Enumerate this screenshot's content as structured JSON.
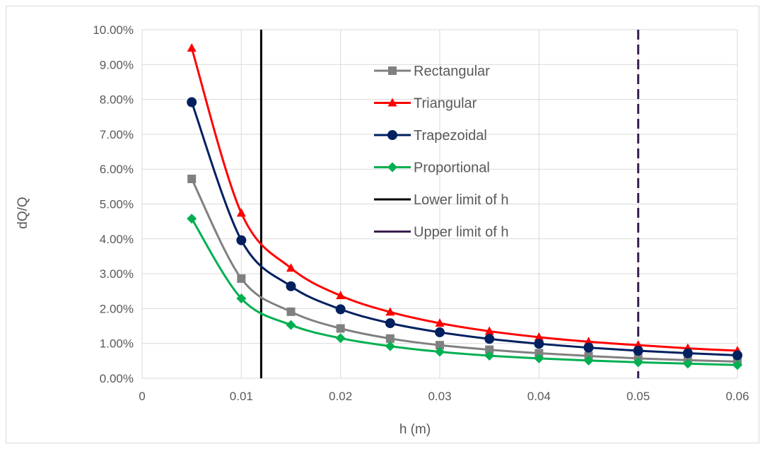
{
  "chart_data": {
    "type": "line",
    "title": "",
    "xlabel": "h (m)",
    "ylabel": "dQ/Q",
    "xlim": [
      0,
      0.06
    ],
    "ylim": [
      0,
      0.1
    ],
    "x_ticks": [
      "0",
      "0.01",
      "0.02",
      "0.03",
      "0.04",
      "0.05",
      "0.06"
    ],
    "y_ticks": [
      "0.00%",
      "1.00%",
      "2.00%",
      "3.00%",
      "4.00%",
      "5.00%",
      "6.00%",
      "7.00%",
      "8.00%",
      "9.00%",
      "10.00%"
    ],
    "grid": "vertical and horizontal major gridlines",
    "legend_position": "inside-center-right",
    "x": [
      0.005,
      0.01,
      0.015,
      0.02,
      0.025,
      0.03,
      0.035,
      0.04,
      0.045,
      0.05,
      0.055,
      0.06
    ],
    "series": [
      {
        "name": "Rectangular",
        "color": "#808080",
        "marker": "square",
        "values": [
          0.0572,
          0.0286,
          0.0191,
          0.0143,
          0.0114,
          0.0095,
          0.0082,
          0.0072,
          0.0064,
          0.0057,
          0.0052,
          0.0048
        ]
      },
      {
        "name": "Triangular",
        "color": "#ff0000",
        "marker": "triangle",
        "values": [
          0.0947,
          0.0474,
          0.0316,
          0.0237,
          0.019,
          0.0158,
          0.0135,
          0.0118,
          0.0105,
          0.0095,
          0.0086,
          0.0079
        ]
      },
      {
        "name": "Trapezoidal",
        "color": "#002060",
        "marker": "circle",
        "values": [
          0.0792,
          0.0396,
          0.0264,
          0.0198,
          0.0158,
          0.0132,
          0.0113,
          0.0099,
          0.0088,
          0.0079,
          0.0072,
          0.0066
        ]
      },
      {
        "name": "Proportional",
        "color": "#00b050",
        "marker": "diamond",
        "values": [
          0.0458,
          0.0229,
          0.0153,
          0.0115,
          0.0092,
          0.0076,
          0.0065,
          0.0057,
          0.0051,
          0.0046,
          0.0042,
          0.0038
        ]
      }
    ],
    "reference_lines": [
      {
        "name": "Lower limit of h",
        "x": 0.012,
        "color": "#000000",
        "style": "solid"
      },
      {
        "name": "Upper limit of h",
        "x": 0.05,
        "color": "#3b1f4f",
        "style": "dashed"
      }
    ]
  }
}
